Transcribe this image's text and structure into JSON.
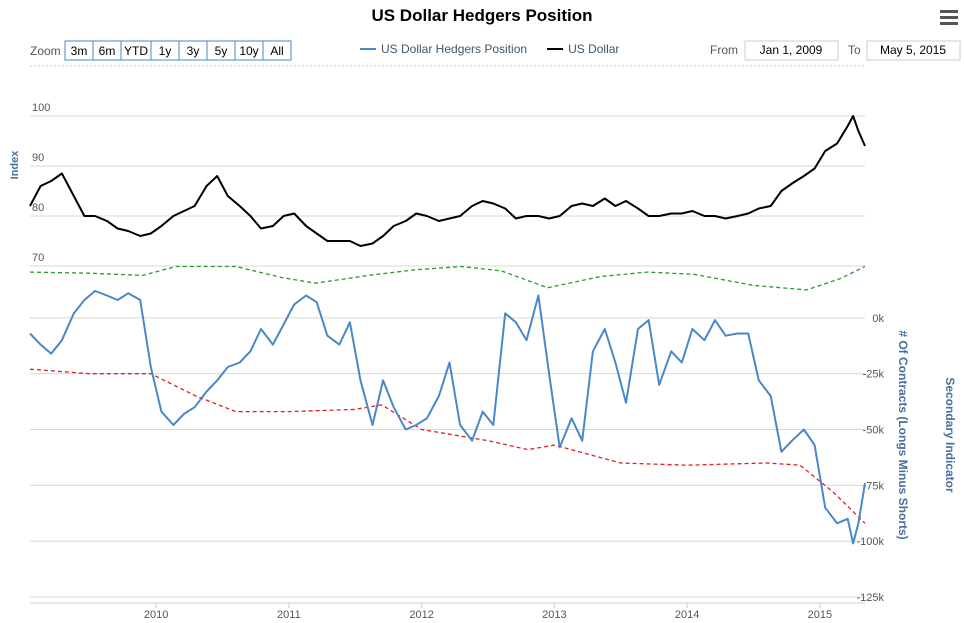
{
  "chart_data": {
    "type": "line",
    "title": "US Dollar Hedgers Position",
    "range_selector": {
      "label": "Zoom",
      "buttons": [
        "3m",
        "6m",
        "YTD",
        "1y",
        "3y",
        "5y",
        "10y",
        "All"
      ],
      "from_label": "From",
      "from": "Jan 1, 2009",
      "to_label": "To",
      "to": "May 5, 2015"
    },
    "y_title": "Index",
    "y2_title": "# Of Contracts (Longs Minus Shorts)",
    "y3_title": "Secondary Indicator",
    "xlim": [
      2009.05,
      2015.34
    ],
    "xticks": [
      2010,
      2011,
      2012,
      2013,
      2014,
      2015
    ],
    "ylim": [
      70,
      110
    ],
    "yticks": [
      70,
      80,
      90,
      100
    ],
    "y2lim": [
      -125000,
      25000
    ],
    "y2ticks": [
      {
        "value": 0,
        "label": "0k"
      },
      {
        "value": -25000,
        "label": "-25k"
      },
      {
        "value": -50000,
        "label": "-50k"
      },
      {
        "value": -75000,
        "label": "-75k"
      },
      {
        "value": -100000,
        "label": "-100k"
      },
      {
        "value": -125000,
        "label": "-125k"
      }
    ],
    "grid": true,
    "x": [
      2009.05,
      2009.13,
      2009.21,
      2009.29,
      2009.38,
      2009.46,
      2009.54,
      2009.63,
      2009.71,
      2009.79,
      2009.88,
      2009.96,
      2010.04,
      2010.13,
      2010.21,
      2010.29,
      2010.38,
      2010.46,
      2010.54,
      2010.63,
      2010.71,
      2010.79,
      2010.88,
      2010.96,
      2011.04,
      2011.13,
      2011.21,
      2011.29,
      2011.38,
      2011.46,
      2011.54,
      2011.63,
      2011.71,
      2011.79,
      2011.88,
      2011.96,
      2012.04,
      2012.13,
      2012.21,
      2012.29,
      2012.38,
      2012.46,
      2012.54,
      2012.63,
      2012.71,
      2012.79,
      2012.88,
      2012.96,
      2013.04,
      2013.13,
      2013.21,
      2013.29,
      2013.38,
      2013.46,
      2013.54,
      2013.63,
      2013.71,
      2013.79,
      2013.88,
      2013.96,
      2014.04,
      2014.13,
      2014.21,
      2014.29,
      2014.38,
      2014.46,
      2014.54,
      2014.63,
      2014.71,
      2014.79,
      2014.88,
      2014.96,
      2015.04,
      2015.13,
      2015.21,
      2015.25,
      2015.29,
      2015.34
    ],
    "series": [
      {
        "name": "US Dollar Hedgers Position",
        "color": "#4a87c8",
        "axis": "y2",
        "values": [
          -7000,
          -12000,
          -16000,
          -10000,
          2000,
          8000,
          12000,
          10000,
          8000,
          11000,
          8000,
          -22000,
          -42000,
          -48000,
          -43000,
          -40000,
          -33000,
          -28000,
          -22000,
          -20000,
          -15000,
          -5000,
          -12000,
          -3000,
          6000,
          10000,
          7000,
          -8000,
          -12000,
          -2000,
          -28000,
          -48000,
          -28000,
          -40000,
          -50000,
          -48000,
          -45000,
          -35000,
          -20000,
          -48000,
          -55000,
          -42000,
          -48000,
          2000,
          -2000,
          -10000,
          10000,
          -25000,
          -58000,
          -45000,
          -55000,
          -15000,
          -5000,
          -20000,
          -38000,
          -5000,
          -1000,
          -30000,
          -15000,
          -20000,
          -5000,
          -10000,
          -1000,
          -8000,
          -7000,
          -7000,
          -28000,
          -35000,
          -60000,
          -55000,
          -50000,
          -57000,
          -85000,
          -92000,
          -90000,
          -101000,
          -92000,
          -74000
        ]
      },
      {
        "name": "US Dollar",
        "color": "#000000",
        "axis": "y",
        "values": [
          82,
          86,
          87,
          88.5,
          84,
          80,
          80,
          79,
          77.5,
          77,
          76,
          76.5,
          78,
          80,
          81,
          82,
          86,
          88,
          84,
          82,
          80,
          77.5,
          78,
          80,
          80.5,
          78,
          76.5,
          75,
          75,
          75,
          74,
          74.5,
          76,
          78,
          79,
          80.5,
          80,
          79,
          79.5,
          80,
          82,
          83,
          82.5,
          81.5,
          79.5,
          80,
          80,
          79.5,
          80,
          82,
          82.5,
          82,
          83.5,
          82,
          83,
          81.5,
          80,
          80,
          80.5,
          80.5,
          81,
          80,
          80,
          79.5,
          80,
          80.5,
          81.5,
          82,
          85,
          86.5,
          88,
          89.5,
          93,
          94.5,
          98,
          100,
          97,
          94
        ]
      },
      {
        "color": "#e02020",
        "axis": "y2",
        "dashed": true,
        "x": [
          2009.05,
          2009.5,
          2009.96,
          2010.3,
          2010.6,
          2011.0,
          2011.5,
          2011.7,
          2012.0,
          2012.5,
          2012.8,
          2013.0,
          2013.5,
          2014.0,
          2014.6,
          2014.85,
          2015.1,
          2015.34
        ],
        "values": [
          -23000,
          -25000,
          -25000,
          -35000,
          -42000,
          -42000,
          -41000,
          -39000,
          -50000,
          -55000,
          -59000,
          -57000,
          -65000,
          -66000,
          -65000,
          -66000,
          -78000,
          -92000
        ]
      },
      {
        "color": "#2a9a2a",
        "axis": "y2",
        "dashed": true,
        "x": [
          2009.05,
          2009.5,
          2009.9,
          2010.15,
          2010.6,
          2010.95,
          2011.2,
          2011.6,
          2011.95,
          2012.3,
          2012.6,
          2012.95,
          2013.35,
          2013.7,
          2014.05,
          2014.5,
          2014.9,
          2015.15,
          2015.34
        ],
        "values": [
          20500,
          20000,
          19000,
          23000,
          23000,
          18000,
          15500,
          19000,
          21500,
          23000,
          21000,
          13500,
          18500,
          20500,
          19500,
          14500,
          12500,
          17500,
          23000
        ]
      }
    ]
  }
}
